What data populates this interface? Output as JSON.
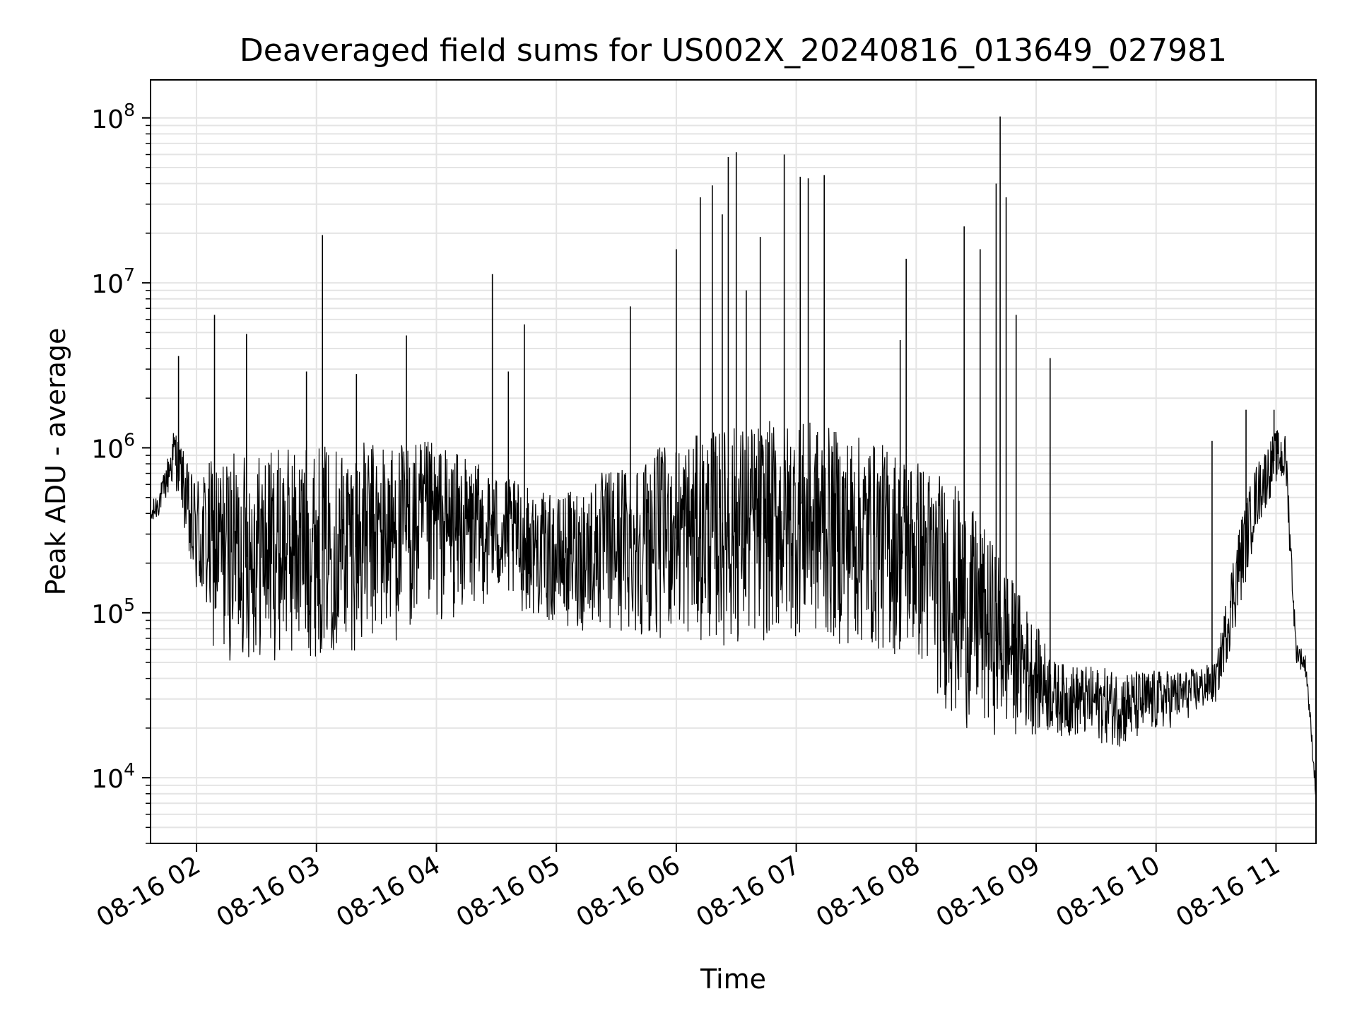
{
  "chart_data": {
    "type": "line",
    "title": "Deaveraged field sums for US002X_20240816_013649_027981",
    "xlabel": "Time",
    "ylabel": "Peak ADU - average",
    "yscale": "log",
    "ylim": [
      4000,
      170000000
    ],
    "xlim": [
      "2024-08-16 01:37",
      "2024-08-16 11:20"
    ],
    "grid": true,
    "x_ticks": [
      {
        "t": "2024-08-16 02:00",
        "label": "08-16 02"
      },
      {
        "t": "2024-08-16 03:00",
        "label": "08-16 03"
      },
      {
        "t": "2024-08-16 04:00",
        "label": "08-16 04"
      },
      {
        "t": "2024-08-16 05:00",
        "label": "08-16 05"
      },
      {
        "t": "2024-08-16 06:00",
        "label": "08-16 06"
      },
      {
        "t": "2024-08-16 07:00",
        "label": "08-16 07"
      },
      {
        "t": "2024-08-16 08:00",
        "label": "08-16 08"
      },
      {
        "t": "2024-08-16 09:00",
        "label": "08-16 09"
      },
      {
        "t": "2024-08-16 10:00",
        "label": "08-16 10"
      },
      {
        "t": "2024-08-16 11:00",
        "label": "08-16 11"
      }
    ],
    "y_ticks": [
      {
        "value": 10000,
        "base": "10",
        "exp": "4"
      },
      {
        "value": 100000,
        "base": "10",
        "exp": "5"
      },
      {
        "value": 1000000,
        "base": "10",
        "exp": "6"
      },
      {
        "value": 10000000,
        "base": "10",
        "exp": "7"
      },
      {
        "value": 100000000,
        "base": "10",
        "exp": "8"
      }
    ],
    "series": [
      {
        "color": "#000000",
        "baseline": [
          {
            "t": "2024-08-16 01:37",
            "lo": 300000,
            "hi": 450000
          },
          {
            "t": "2024-08-16 01:43",
            "lo": 420000,
            "hi": 650000
          },
          {
            "t": "2024-08-16 01:49",
            "lo": 600000,
            "hi": 1400000
          },
          {
            "t": "2024-08-16 01:53",
            "lo": 400000,
            "hi": 1000000
          },
          {
            "t": "2024-08-16 01:57",
            "lo": 130000,
            "hi": 700000
          },
          {
            "t": "2024-08-16 02:10",
            "lo": 50000,
            "hi": 900000
          },
          {
            "t": "2024-08-16 02:40",
            "lo": 50000,
            "hi": 1000000
          },
          {
            "t": "2024-08-16 03:30",
            "lo": 60000,
            "hi": 1100000
          },
          {
            "t": "2024-08-16 04:00",
            "lo": 80000,
            "hi": 1100000
          },
          {
            "t": "2024-08-16 04:30",
            "lo": 120000,
            "hi": 700000
          },
          {
            "t": "2024-08-16 05:00",
            "lo": 80000,
            "hi": 500000
          },
          {
            "t": "2024-08-16 05:30",
            "lo": 70000,
            "hi": 800000
          },
          {
            "t": "2024-08-16 06:00",
            "lo": 70000,
            "hi": 1100000
          },
          {
            "t": "2024-08-16 06:30",
            "lo": 60000,
            "hi": 1400000
          },
          {
            "t": "2024-08-16 07:00",
            "lo": 70000,
            "hi": 1500000
          },
          {
            "t": "2024-08-16 07:30",
            "lo": 60000,
            "hi": 1200000
          },
          {
            "t": "2024-08-16 08:00",
            "lo": 50000,
            "hi": 900000
          },
          {
            "t": "2024-08-16 08:20",
            "lo": 20000,
            "hi": 600000
          },
          {
            "t": "2024-08-16 08:40",
            "lo": 18000,
            "hi": 250000
          },
          {
            "t": "2024-08-16 09:10",
            "lo": 18000,
            "hi": 50000
          },
          {
            "t": "2024-08-16 09:45",
            "lo": 15000,
            "hi": 45000
          },
          {
            "t": "2024-08-16 10:15",
            "lo": 22000,
            "hi": 45000
          },
          {
            "t": "2024-08-16 10:30",
            "lo": 28000,
            "hi": 50000
          },
          {
            "t": "2024-08-16 10:40",
            "lo": 80000,
            "hi": 300000
          },
          {
            "t": "2024-08-16 10:50",
            "lo": 300000,
            "hi": 800000
          },
          {
            "t": "2024-08-16 11:00",
            "lo": 600000,
            "hi": 1300000
          },
          {
            "t": "2024-08-16 11:05",
            "lo": 550000,
            "hi": 1200000
          },
          {
            "t": "2024-08-16 11:10",
            "lo": 50000,
            "hi": 70000
          },
          {
            "t": "2024-08-16 11:15",
            "lo": 40000,
            "hi": 55000
          },
          {
            "t": "2024-08-16 11:20",
            "lo": 7000,
            "hi": 9000
          }
        ],
        "spikes": [
          {
            "t": "2024-08-16 01:51",
            "v": 3600000
          },
          {
            "t": "2024-08-16 02:09",
            "v": 6400000
          },
          {
            "t": "2024-08-16 02:25",
            "v": 4900000
          },
          {
            "t": "2024-08-16 02:55",
            "v": 2900000
          },
          {
            "t": "2024-08-16 03:03",
            "v": 19500000
          },
          {
            "t": "2024-08-16 03:20",
            "v": 2800000
          },
          {
            "t": "2024-08-16 03:45",
            "v": 4800000
          },
          {
            "t": "2024-08-16 04:28",
            "v": 11300000
          },
          {
            "t": "2024-08-16 04:36",
            "v": 2900000
          },
          {
            "t": "2024-08-16 04:44",
            "v": 5600000
          },
          {
            "t": "2024-08-16 05:37",
            "v": 7200000
          },
          {
            "t": "2024-08-16 06:00",
            "v": 16000000
          },
          {
            "t": "2024-08-16 06:12",
            "v": 33000000
          },
          {
            "t": "2024-08-16 06:18",
            "v": 39000000
          },
          {
            "t": "2024-08-16 06:23",
            "v": 26000000
          },
          {
            "t": "2024-08-16 06:26",
            "v": 58000000
          },
          {
            "t": "2024-08-16 06:30",
            "v": 62000000
          },
          {
            "t": "2024-08-16 06:35",
            "v": 9000000
          },
          {
            "t": "2024-08-16 06:42",
            "v": 19000000
          },
          {
            "t": "2024-08-16 06:54",
            "v": 60000000
          },
          {
            "t": "2024-08-16 07:02",
            "v": 44000000
          },
          {
            "t": "2024-08-16 07:06",
            "v": 43000000
          },
          {
            "t": "2024-08-16 07:14",
            "v": 45000000
          },
          {
            "t": "2024-08-16 07:52",
            "v": 4500000
          },
          {
            "t": "2024-08-16 07:55",
            "v": 14000000
          },
          {
            "t": "2024-08-16 08:24",
            "v": 22000000
          },
          {
            "t": "2024-08-16 08:32",
            "v": 16000000
          },
          {
            "t": "2024-08-16 08:40",
            "v": 40000000
          },
          {
            "t": "2024-08-16 08:42",
            "v": 102000000
          },
          {
            "t": "2024-08-16 08:45",
            "v": 33000000
          },
          {
            "t": "2024-08-16 08:50",
            "v": 6400000
          },
          {
            "t": "2024-08-16 09:07",
            "v": 3500000
          },
          {
            "t": "2024-08-16 10:28",
            "v": 1100000
          },
          {
            "t": "2024-08-16 10:45",
            "v": 1700000
          },
          {
            "t": "2024-08-16 10:59",
            "v": 1700000
          }
        ]
      }
    ]
  }
}
